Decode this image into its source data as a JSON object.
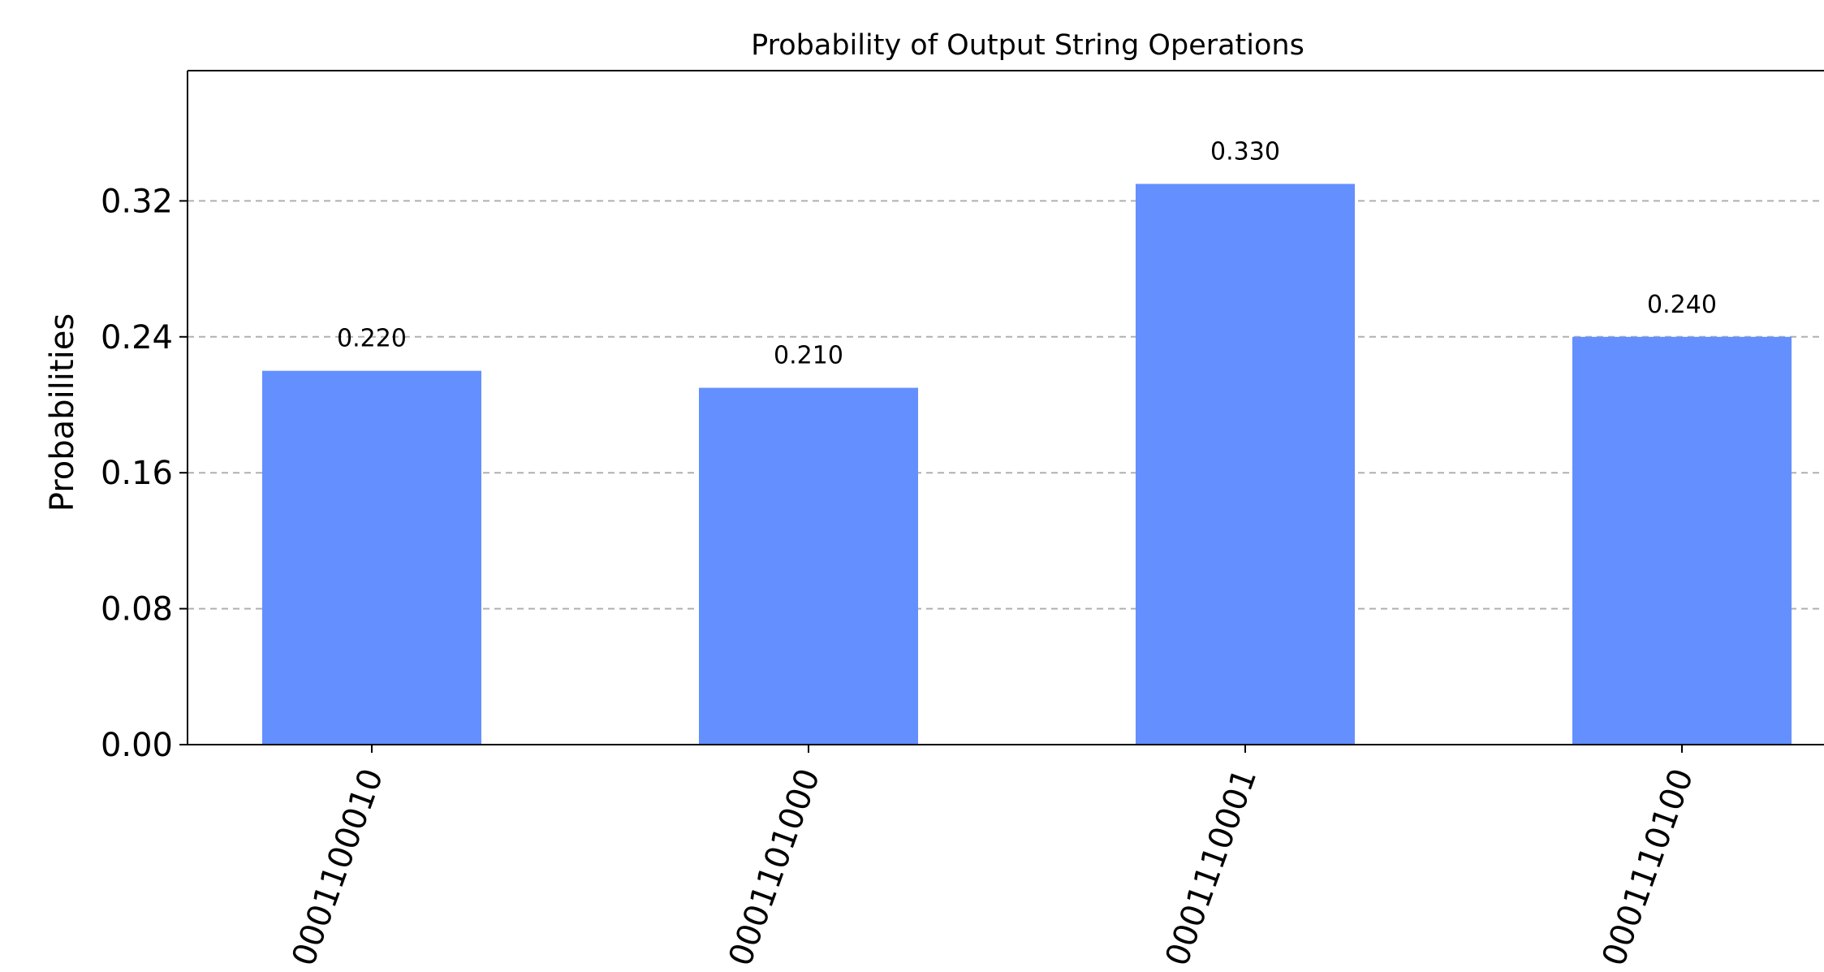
{
  "chart_data": {
    "type": "bar",
    "title": "Probability of Output String Operations",
    "xlabel": "",
    "ylabel": "Probabilities",
    "categories": [
      "0001100010",
      "0001101000",
      "0001110001",
      "0001110100"
    ],
    "values": [
      0.22,
      0.21,
      0.33,
      0.24
    ],
    "value_labels": [
      "0.220",
      "0.210",
      "0.330",
      "0.240"
    ],
    "yticks": [
      0.0,
      0.08,
      0.16,
      0.24,
      0.32
    ],
    "ytick_labels": [
      "0.00",
      "0.08",
      "0.16",
      "0.24",
      "0.32"
    ],
    "ylim": [
      0,
      0.397
    ],
    "grid": "horizontal dashed",
    "bar_color": "#648fff"
  }
}
